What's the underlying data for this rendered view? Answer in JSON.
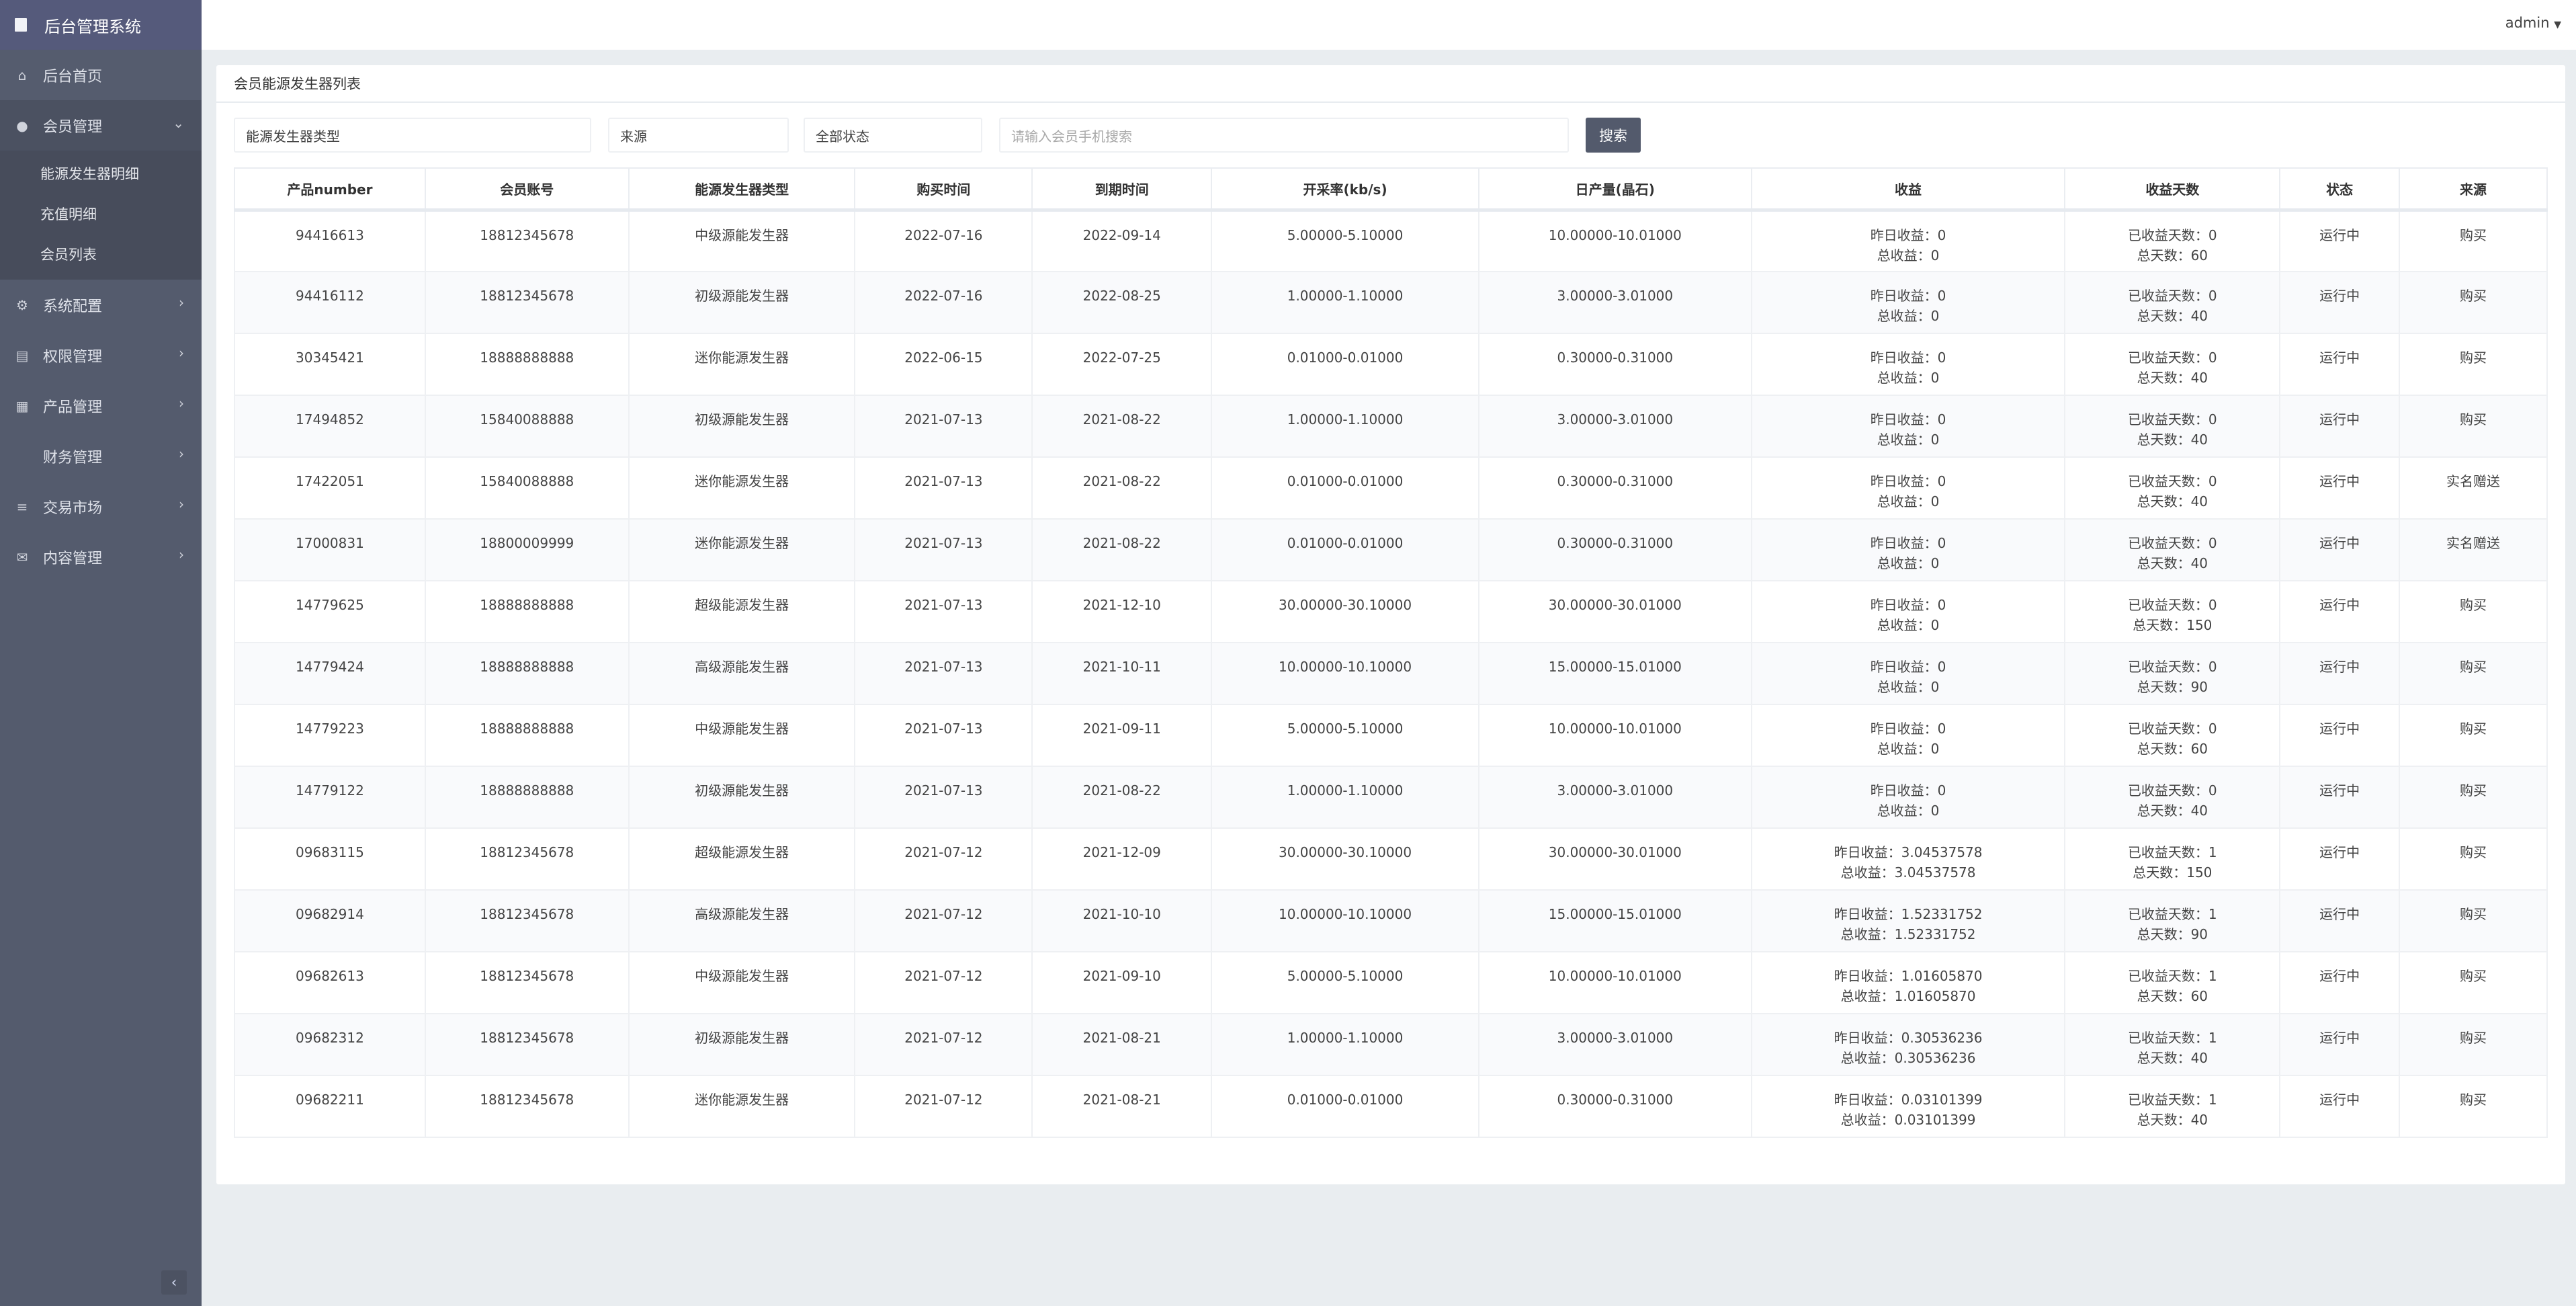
{
  "app": {
    "title": "后台管理系统",
    "user": "admin"
  },
  "sidebar": {
    "items": [
      {
        "label": "后台首页",
        "icon": "home-icon"
      },
      {
        "label": "会员管理",
        "icon": "user-icon",
        "children": [
          "能源发生器明细",
          "充值明细",
          "会员列表"
        ]
      },
      {
        "label": "系统配置",
        "icon": "gears-icon"
      },
      {
        "label": "权限管理",
        "icon": "tasks-icon"
      },
      {
        "label": "产品管理",
        "icon": "windows-icon"
      },
      {
        "label": "财务管理",
        "icon": ""
      },
      {
        "label": "交易市场",
        "icon": "bars-icon"
      },
      {
        "label": "内容管理",
        "icon": "envelope-icon"
      }
    ]
  },
  "panel": {
    "title": "会员能源发生器列表"
  },
  "filters": {
    "type": "能源发生器类型",
    "source": "来源",
    "status": "全部状态",
    "phone_placeholder": "请输入会员手机搜索",
    "search": "搜索"
  },
  "table": {
    "headers": [
      "产品number",
      "会员账号",
      "能源发生器类型",
      "购买时间",
      "到期时间",
      "开采率(kb/s)",
      "日产量(晶石)",
      "收益",
      "收益天数",
      "状态",
      "来源"
    ],
    "rows": [
      [
        "94416613",
        "18812345678",
        "中级源能发生器",
        "2022-07-16",
        "2022-09-14",
        "5.00000-5.10000",
        "10.00000-10.01000",
        "昨日收益：0",
        "总收益：0",
        "已收益天数：0",
        "总天数：60",
        "运行中",
        "购买"
      ],
      [
        "94416112",
        "18812345678",
        "初级源能发生器",
        "2022-07-16",
        "2022-08-25",
        "1.00000-1.10000",
        "3.00000-3.01000",
        "昨日收益：0",
        "总收益：0",
        "已收益天数：0",
        "总天数：40",
        "运行中",
        "购买"
      ],
      [
        "30345421",
        "18888888888",
        "迷你能源发生器",
        "2022-06-15",
        "2022-07-25",
        "0.01000-0.01000",
        "0.30000-0.31000",
        "昨日收益：0",
        "总收益：0",
        "已收益天数：0",
        "总天数：40",
        "运行中",
        "购买"
      ],
      [
        "17494852",
        "15840088888",
        "初级源能发生器",
        "2021-07-13",
        "2021-08-22",
        "1.00000-1.10000",
        "3.00000-3.01000",
        "昨日收益：0",
        "总收益：0",
        "已收益天数：0",
        "总天数：40",
        "运行中",
        "购买"
      ],
      [
        "17422051",
        "15840088888",
        "迷你能源发生器",
        "2021-07-13",
        "2021-08-22",
        "0.01000-0.01000",
        "0.30000-0.31000",
        "昨日收益：0",
        "总收益：0",
        "已收益天数：0",
        "总天数：40",
        "运行中",
        "实名赠送"
      ],
      [
        "17000831",
        "18800009999",
        "迷你能源发生器",
        "2021-07-13",
        "2021-08-22",
        "0.01000-0.01000",
        "0.30000-0.31000",
        "昨日收益：0",
        "总收益：0",
        "已收益天数：0",
        "总天数：40",
        "运行中",
        "实名赠送"
      ],
      [
        "14779625",
        "18888888888",
        "超级能源发生器",
        "2021-07-13",
        "2021-12-10",
        "30.00000-30.10000",
        "30.00000-30.01000",
        "昨日收益：0",
        "总收益：0",
        "已收益天数：0",
        "总天数：150",
        "运行中",
        "购买"
      ],
      [
        "14779424",
        "18888888888",
        "高级源能发生器",
        "2021-07-13",
        "2021-10-11",
        "10.00000-10.10000",
        "15.00000-15.01000",
        "昨日收益：0",
        "总收益：0",
        "已收益天数：0",
        "总天数：90",
        "运行中",
        "购买"
      ],
      [
        "14779223",
        "18888888888",
        "中级源能发生器",
        "2021-07-13",
        "2021-09-11",
        "5.00000-5.10000",
        "10.00000-10.01000",
        "昨日收益：0",
        "总收益：0",
        "已收益天数：0",
        "总天数：60",
        "运行中",
        "购买"
      ],
      [
        "14779122",
        "18888888888",
        "初级源能发生器",
        "2021-07-13",
        "2021-08-22",
        "1.00000-1.10000",
        "3.00000-3.01000",
        "昨日收益：0",
        "总收益：0",
        "已收益天数：0",
        "总天数：40",
        "运行中",
        "购买"
      ],
      [
        "09683115",
        "18812345678",
        "超级能源发生器",
        "2021-07-12",
        "2021-12-09",
        "30.00000-30.10000",
        "30.00000-30.01000",
        "昨日收益：3.04537578",
        "总收益：3.04537578",
        "已收益天数：1",
        "总天数：150",
        "运行中",
        "购买"
      ],
      [
        "09682914",
        "18812345678",
        "高级源能发生器",
        "2021-07-12",
        "2021-10-10",
        "10.00000-10.10000",
        "15.00000-15.01000",
        "昨日收益：1.52331752",
        "总收益：1.52331752",
        "已收益天数：1",
        "总天数：90",
        "运行中",
        "购买"
      ],
      [
        "09682613",
        "18812345678",
        "中级源能发生器",
        "2021-07-12",
        "2021-09-10",
        "5.00000-5.10000",
        "10.00000-10.01000",
        "昨日收益：1.01605870",
        "总收益：1.01605870",
        "已收益天数：1",
        "总天数：60",
        "运行中",
        "购买"
      ],
      [
        "09682312",
        "18812345678",
        "初级源能发生器",
        "2021-07-12",
        "2021-08-21",
        "1.00000-1.10000",
        "3.00000-3.01000",
        "昨日收益：0.30536236",
        "总收益：0.30536236",
        "已收益天数：1",
        "总天数：40",
        "运行中",
        "购买"
      ],
      [
        "09682211",
        "18812345678",
        "迷你能源发生器",
        "2021-07-12",
        "2021-08-21",
        "0.01000-0.01000",
        "0.30000-0.31000",
        "昨日收益：0.03101399",
        "总收益：0.03101399",
        "已收益天数：1",
        "总天数：40",
        "运行中",
        "购买"
      ]
    ]
  }
}
